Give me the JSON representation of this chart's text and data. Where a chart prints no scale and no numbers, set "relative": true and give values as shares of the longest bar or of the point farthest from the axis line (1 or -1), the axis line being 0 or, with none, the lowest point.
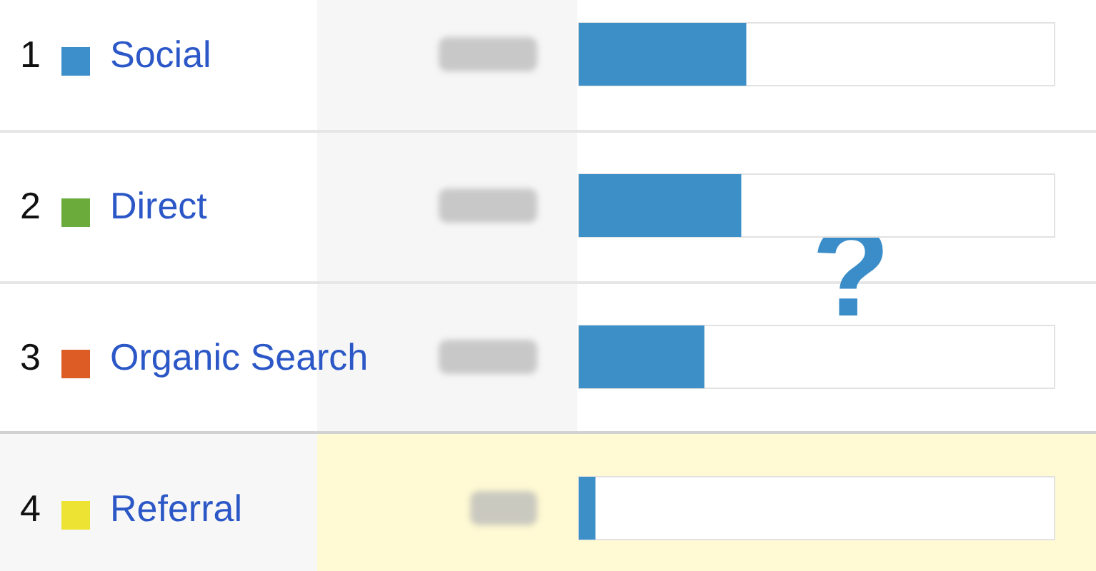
{
  "chart_data": {
    "type": "bar",
    "orientation": "horizontal",
    "relative": true,
    "categories": [
      "Social",
      "Direct",
      "Organic Search",
      "Referral"
    ],
    "values": [
      1,
      0.97,
      0.75,
      0.1
    ],
    "color": "#3d8fc8",
    "annotations": [
      "1",
      "2",
      "3",
      "4",
      "?"
    ]
  }
}
